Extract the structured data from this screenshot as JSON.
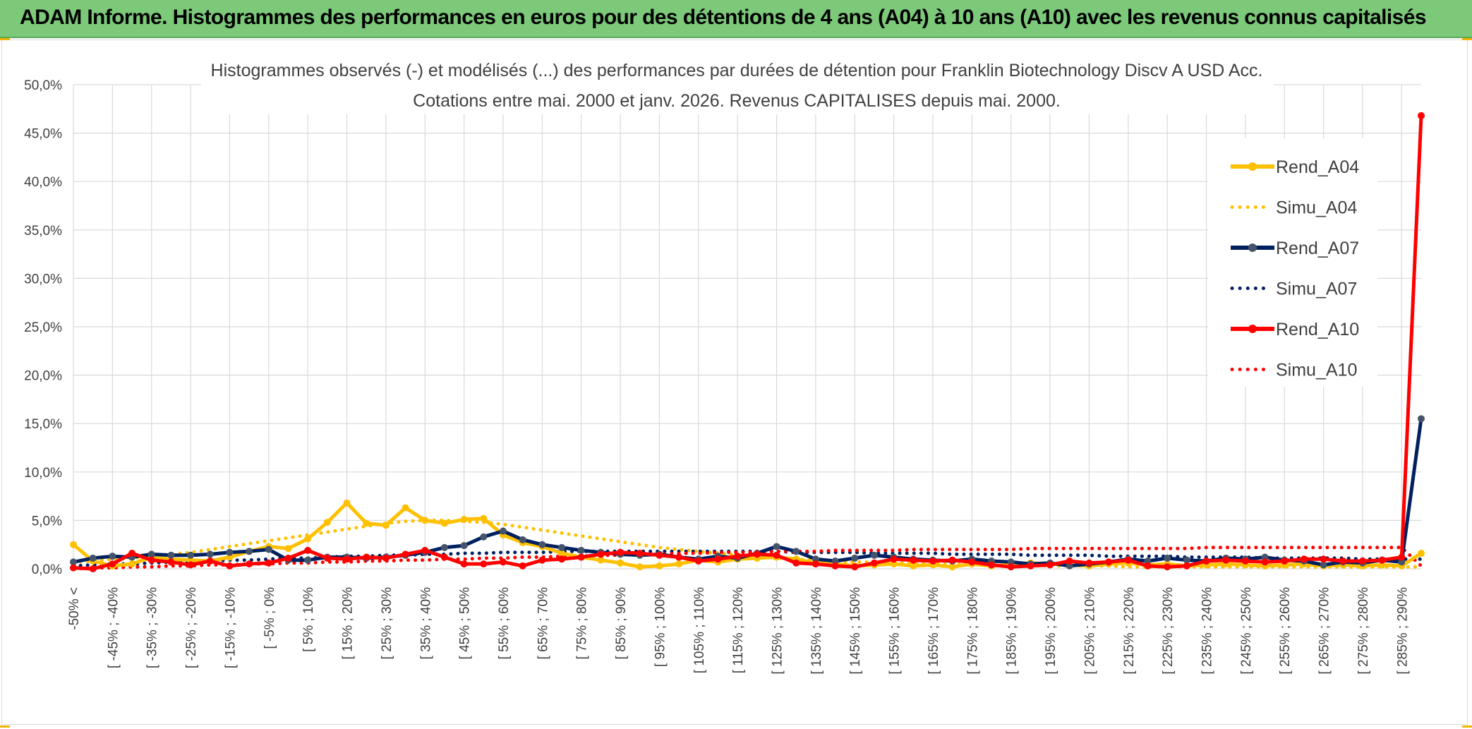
{
  "banner": {
    "title": "ADAM Informe. Histogrammes des performances en euros pour des détentions de 4 ans (A04) à 10 ans (A10) avec les revenus connus capitalisés"
  },
  "colors": {
    "banner_bg": "#7cc97a",
    "A04": "#ffc000",
    "A07": "#002060",
    "A07_marker": "#44546a",
    "A10": "#ff0000",
    "grid": "#d9d9d9"
  },
  "chart_data": {
    "type": "line",
    "title": [
      "Histogrammes observés (-) et modélisés (...) des performances par durées de détention pour Franklin Biotechnology Discv A USD Acc.",
      "Cotations entre mai. 2000 et janv. 2026. Revenus CAPITALISES depuis mai. 2000."
    ],
    "xlabel": "",
    "ylabel": "",
    "ylim": [
      0,
      50
    ],
    "yticks": [
      "0,0%",
      "5,0%",
      "10,0%",
      "15,0%",
      "20,0%",
      "25,0%",
      "30,0%",
      "35,0%",
      "40,0%",
      "45,0%",
      "50,0%"
    ],
    "grid": true,
    "legend_position": "right",
    "x_labels": [
      "-50% <",
      "[ -45% ; -40%",
      "[ -35% ; -30%",
      "[ -25% ; -20%",
      "[ -15% ; -10%",
      "[ -5% ; 0%",
      "[ 5% ; 10%",
      "[ 15% ; 20%",
      "[ 25% ; 30%",
      "[ 35% ; 40%",
      "[ 45% ; 50%",
      "[ 55% ; 60%",
      "[ 65% ; 70%",
      "[ 75% ; 80%",
      "[ 85% ; 90%",
      "[ 95% ; 100%",
      "[ 105% ; 110%",
      "[ 115% ; 120%",
      "[ 125% ; 130%",
      "[ 135% ; 140%",
      "[ 145% ; 150%",
      "[ 155% ; 160%",
      "[ 165% ; 170%",
      "[ 175% ; 180%",
      "[ 185% ; 190%",
      "[ 195% ; 200%",
      "[ 205% ; 210%",
      "[ 215% ; 220%",
      "[ 225% ; 230%",
      "[ 235% ; 240%",
      "[ 245% ; 250%",
      "[ 255% ; 260%",
      "[ 265% ; 270%",
      "[ 275% ; 280%",
      "[ 285% ; 290%"
    ],
    "n_points": 70,
    "series": [
      {
        "name": "Rend_A04",
        "style": "solid",
        "values": [
          2.5,
          0.8,
          0.3,
          0.5,
          1.2,
          1.0,
          0.9,
          0.8,
          1.2,
          1.8,
          2.3,
          2.1,
          3.1,
          4.8,
          6.8,
          4.7,
          4.5,
          6.3,
          5.0,
          4.7,
          5.1,
          5.2,
          3.5,
          2.7,
          2.3,
          1.6,
          1.2,
          0.9,
          0.6,
          0.2,
          0.3,
          0.5,
          0.9,
          0.7,
          1.0,
          1.1,
          1.2,
          1.0,
          0.6,
          0.5,
          0.3,
          0.4,
          0.5,
          0.3,
          0.4,
          0.2,
          0.5,
          0.3,
          0.4,
          0.6,
          0.5,
          0.4,
          0.3,
          0.5,
          0.6,
          0.4,
          0.5,
          0.3,
          0.4,
          0.5,
          0.4,
          0.3,
          0.4,
          0.5,
          0.3,
          0.4,
          0.3,
          0.4,
          0.3,
          1.6
        ]
      },
      {
        "name": "Simu_A04",
        "style": "dotted",
        "values": [
          0.7,
          0.8,
          1.0,
          1.1,
          1.3,
          1.5,
          1.7,
          2.0,
          2.3,
          2.6,
          2.9,
          3.2,
          3.5,
          3.8,
          4.1,
          4.4,
          4.7,
          4.9,
          5.0,
          5.0,
          4.9,
          4.8,
          4.6,
          4.3,
          4.0,
          3.7,
          3.4,
          3.1,
          2.8,
          2.5,
          2.2,
          2.0,
          1.8,
          1.6,
          1.4,
          1.3,
          1.1,
          1.0,
          0.9,
          0.8,
          0.7,
          0.7,
          0.6,
          0.6,
          0.5,
          0.5,
          0.4,
          0.4,
          0.4,
          0.3,
          0.3,
          0.3,
          0.3,
          0.3,
          0.2,
          0.2,
          0.2,
          0.2,
          0.2,
          0.2,
          0.2,
          0.2,
          0.2,
          0.2,
          0.2,
          0.2,
          0.2,
          0.2,
          0.2,
          0.2
        ]
      },
      {
        "name": "Rend_A07",
        "style": "solid",
        "values": [
          0.7,
          1.1,
          1.3,
          1.2,
          1.5,
          1.4,
          1.4,
          1.5,
          1.7,
          1.8,
          2.0,
          0.9,
          0.9,
          1.2,
          1.2,
          1.1,
          1.2,
          1.4,
          1.7,
          2.2,
          2.4,
          3.3,
          3.9,
          3.0,
          2.5,
          2.2,
          1.9,
          1.7,
          1.5,
          1.4,
          1.5,
          1.2,
          1.0,
          1.3,
          1.1,
          1.6,
          2.3,
          1.8,
          1.0,
          0.8,
          1.1,
          1.4,
          1.2,
          1.0,
          0.9,
          0.8,
          1.0,
          0.8,
          0.7,
          0.5,
          0.6,
          0.3,
          0.5,
          0.7,
          1.0,
          0.8,
          1.1,
          0.9,
          0.8,
          1.1,
          1.0,
          1.2,
          0.9,
          0.8,
          0.4,
          0.7,
          0.6,
          0.9,
          0.7,
          15.5
        ]
      },
      {
        "name": "Simu_A07",
        "style": "dotted",
        "values": [
          0.3,
          0.4,
          0.5,
          0.5,
          0.6,
          0.7,
          0.7,
          0.8,
          0.9,
          0.9,
          1.0,
          1.1,
          1.1,
          1.2,
          1.3,
          1.3,
          1.4,
          1.4,
          1.5,
          1.5,
          1.6,
          1.6,
          1.7,
          1.7,
          1.7,
          1.8,
          1.8,
          1.8,
          1.8,
          1.8,
          1.8,
          1.8,
          1.8,
          1.8,
          1.8,
          1.8,
          1.8,
          1.7,
          1.7,
          1.7,
          1.7,
          1.6,
          1.6,
          1.6,
          1.6,
          1.5,
          1.5,
          1.5,
          1.5,
          1.4,
          1.4,
          1.4,
          1.4,
          1.3,
          1.3,
          1.3,
          1.3,
          1.2,
          1.2,
          1.2,
          1.2,
          1.1,
          1.1,
          1.1,
          1.1,
          1.1,
          1.0,
          1.0,
          1.0,
          1.0
        ]
      },
      {
        "name": "Rend_A10",
        "style": "solid",
        "values": [
          0.1,
          0.0,
          0.5,
          1.6,
          0.9,
          0.7,
          0.4,
          0.8,
          0.3,
          0.5,
          0.6,
          1.1,
          1.9,
          1.1,
          1.0,
          1.2,
          1.1,
          1.5,
          1.9,
          1.2,
          0.5,
          0.5,
          0.7,
          0.3,
          0.9,
          1.0,
          1.2,
          1.5,
          1.7,
          1.6,
          1.4,
          1.2,
          0.8,
          1.0,
          1.3,
          1.5,
          1.4,
          0.6,
          0.5,
          0.3,
          0.2,
          0.6,
          1.0,
          0.9,
          0.8,
          0.9,
          0.7,
          0.4,
          0.2,
          0.3,
          0.4,
          0.8,
          0.6,
          0.7,
          0.9,
          0.3,
          0.2,
          0.3,
          0.8,
          0.9,
          0.8,
          0.7,
          0.8,
          1.0,
          1.0,
          0.8,
          0.8,
          0.9,
          1.2,
          46.8
        ]
      },
      {
        "name": "Simu_A10",
        "style": "dotted",
        "values": [
          0.0,
          0.1,
          0.1,
          0.2,
          0.2,
          0.3,
          0.3,
          0.4,
          0.4,
          0.5,
          0.5,
          0.6,
          0.6,
          0.7,
          0.7,
          0.8,
          0.8,
          0.9,
          0.9,
          1.0,
          1.0,
          1.1,
          1.1,
          1.2,
          1.2,
          1.3,
          1.3,
          1.4,
          1.4,
          1.5,
          1.5,
          1.6,
          1.6,
          1.7,
          1.7,
          1.7,
          1.8,
          1.8,
          1.8,
          1.9,
          1.9,
          1.9,
          1.9,
          2.0,
          2.0,
          2.0,
          2.0,
          2.0,
          2.0,
          2.1,
          2.1,
          2.1,
          2.1,
          2.1,
          2.1,
          2.1,
          2.1,
          2.1,
          2.2,
          2.2,
          2.2,
          2.2,
          2.2,
          2.2,
          2.2,
          2.2,
          2.2,
          2.2,
          2.2,
          0.3
        ]
      }
    ]
  }
}
